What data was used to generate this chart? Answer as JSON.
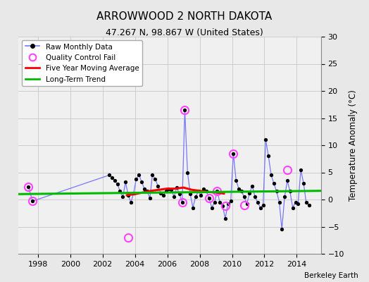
{
  "title": "ARROWWOOD 2 NORTH DAKOTA",
  "subtitle": "47.267 N, 98.867 W (United States)",
  "ylabel": "Temperature Anomaly (°C)",
  "credit": "Berkeley Earth",
  "ylim": [
    -10,
    30
  ],
  "xlim": [
    1996.8,
    2015.5
  ],
  "yticks": [
    -10,
    -5,
    0,
    5,
    10,
    15,
    20,
    25,
    30
  ],
  "xticks": [
    1998,
    2000,
    2002,
    2004,
    2006,
    2008,
    2010,
    2012,
    2014
  ],
  "bg_color": "#e8e8e8",
  "plot_bg_color": "#f0f0f0",
  "raw_line_color": "#7777ff",
  "raw_dot_color": "#000000",
  "qc_color": "#ff44ff",
  "mavg_color": "#ff0000",
  "trend_color": "#00bb00",
  "grid_color": "#cccccc",
  "raw_data": [
    [
      1997.42,
      2.3
    ],
    [
      1997.67,
      -0.3
    ],
    [
      2002.42,
      4.5
    ],
    [
      2002.58,
      4.0
    ],
    [
      2002.75,
      3.5
    ],
    [
      2002.92,
      2.8
    ],
    [
      2003.08,
      1.5
    ],
    [
      2003.25,
      0.5
    ],
    [
      2003.42,
      3.2
    ],
    [
      2003.58,
      0.8
    ],
    [
      2003.75,
      -0.5
    ],
    [
      2003.92,
      1.2
    ],
    [
      2004.08,
      3.8
    ],
    [
      2004.25,
      4.5
    ],
    [
      2004.42,
      3.2
    ],
    [
      2004.58,
      2.0
    ],
    [
      2004.75,
      1.5
    ],
    [
      2004.92,
      0.3
    ],
    [
      2005.08,
      4.5
    ],
    [
      2005.25,
      3.8
    ],
    [
      2005.42,
      2.5
    ],
    [
      2005.58,
      1.2
    ],
    [
      2005.75,
      0.8
    ],
    [
      2005.92,
      1.5
    ],
    [
      2006.08,
      2.0
    ],
    [
      2006.25,
      1.8
    ],
    [
      2006.42,
      0.5
    ],
    [
      2006.58,
      2.2
    ],
    [
      2006.75,
      1.0
    ],
    [
      2006.92,
      -0.5
    ],
    [
      2007.08,
      16.5
    ],
    [
      2007.25,
      5.0
    ],
    [
      2007.42,
      1.0
    ],
    [
      2007.58,
      -1.5
    ],
    [
      2007.75,
      0.5
    ],
    [
      2007.92,
      1.5
    ],
    [
      2008.08,
      0.8
    ],
    [
      2008.25,
      2.0
    ],
    [
      2008.42,
      1.5
    ],
    [
      2008.58,
      0.2
    ],
    [
      2008.75,
      -1.5
    ],
    [
      2008.92,
      -0.5
    ],
    [
      2009.08,
      1.5
    ],
    [
      2009.25,
      -0.5
    ],
    [
      2009.42,
      -1.2
    ],
    [
      2009.58,
      -3.5
    ],
    [
      2009.75,
      -0.8
    ],
    [
      2009.92,
      -0.3
    ],
    [
      2010.08,
      8.5
    ],
    [
      2010.25,
      3.5
    ],
    [
      2010.42,
      2.0
    ],
    [
      2010.58,
      1.5
    ],
    [
      2010.75,
      0.5
    ],
    [
      2010.92,
      -0.8
    ],
    [
      2011.08,
      1.2
    ],
    [
      2011.25,
      2.5
    ],
    [
      2011.42,
      0.5
    ],
    [
      2011.58,
      -0.5
    ],
    [
      2011.75,
      -1.5
    ],
    [
      2011.92,
      -1.0
    ],
    [
      2012.08,
      11.0
    ],
    [
      2012.25,
      8.0
    ],
    [
      2012.42,
      4.5
    ],
    [
      2012.58,
      3.0
    ],
    [
      2012.75,
      1.5
    ],
    [
      2012.92,
      -0.5
    ],
    [
      2013.08,
      -5.5
    ],
    [
      2013.25,
      0.5
    ],
    [
      2013.42,
      3.5
    ],
    [
      2013.58,
      1.5
    ],
    [
      2013.75,
      -1.5
    ],
    [
      2013.92,
      -0.5
    ],
    [
      2014.08,
      -0.8
    ],
    [
      2014.25,
      5.5
    ],
    [
      2014.42,
      3.0
    ],
    [
      2014.58,
      -0.5
    ],
    [
      2014.75,
      -1.0
    ]
  ],
  "qc_fail_points": [
    [
      1997.42,
      2.3
    ],
    [
      1997.67,
      -0.3
    ],
    [
      2003.58,
      -7.0
    ],
    [
      2006.92,
      -0.5
    ],
    [
      2007.08,
      16.5
    ],
    [
      2008.58,
      0.2
    ],
    [
      2009.08,
      1.5
    ],
    [
      2009.58,
      -1.2
    ],
    [
      2010.08,
      8.5
    ],
    [
      2010.75,
      -1.0
    ],
    [
      2013.42,
      5.5
    ]
  ],
  "moving_avg": [
    [
      2003.5,
      0.8
    ],
    [
      2004.0,
      1.0
    ],
    [
      2004.5,
      1.3
    ],
    [
      2005.0,
      1.6
    ],
    [
      2005.5,
      1.8
    ],
    [
      2006.0,
      2.0
    ],
    [
      2006.5,
      2.0
    ],
    [
      2007.0,
      2.2
    ],
    [
      2007.5,
      1.8
    ],
    [
      2008.0,
      1.6
    ],
    [
      2008.5,
      1.4
    ],
    [
      2009.0,
      1.3
    ],
    [
      2009.5,
      1.1
    ]
  ],
  "trend_x": [
    1996.8,
    2015.5
  ],
  "trend_y": [
    1.0,
    1.6
  ]
}
